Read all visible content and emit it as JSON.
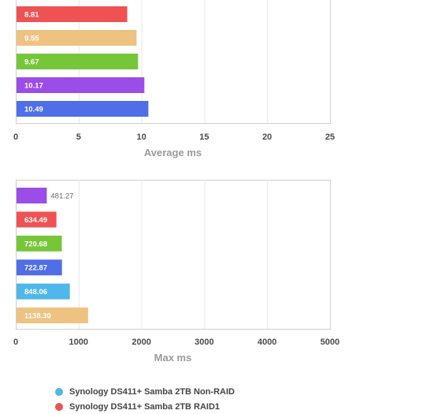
{
  "chart_data": [
    {
      "type": "bar",
      "orientation": "horizontal",
      "xlabel": "Average ms",
      "xlim": [
        0,
        25
      ],
      "xticks": [
        "0",
        "5",
        "10",
        "15",
        "20",
        "25"
      ],
      "grid": true,
      "values": [
        8.81,
        9.55,
        9.67,
        10.17,
        10.49
      ],
      "labels": [
        "8.81",
        "9.55",
        "9.67",
        "10.17",
        "10.49"
      ],
      "colors": [
        "#ef5252",
        "#eec280",
        "#76c63a",
        "#9b4de8",
        "#4f6ee8"
      ]
    },
    {
      "type": "bar",
      "orientation": "horizontal",
      "xlabel": "Max ms",
      "xlim": [
        0,
        5000
      ],
      "xticks": [
        "0",
        "1000",
        "2000",
        "3000",
        "4000",
        "5000"
      ],
      "grid": true,
      "values": [
        481.27,
        634.49,
        720.68,
        722.87,
        848.06,
        1138.3
      ],
      "labels": [
        "481.27",
        "634.49",
        "720.68",
        "722.87",
        "848.06",
        "1138.30"
      ],
      "colors": [
        "#9b4de8",
        "#ef5252",
        "#76c63a",
        "#4f6ee8",
        "#4fb7ea",
        "#eec280"
      ]
    }
  ],
  "legend": [
    {
      "label": "Synology DS411+ Samba 2TB Non-RAID",
      "color": "#4fb7ea"
    },
    {
      "label": "Synology DS411+ Samba 2TB RAID1",
      "color": "#ef5252"
    }
  ]
}
